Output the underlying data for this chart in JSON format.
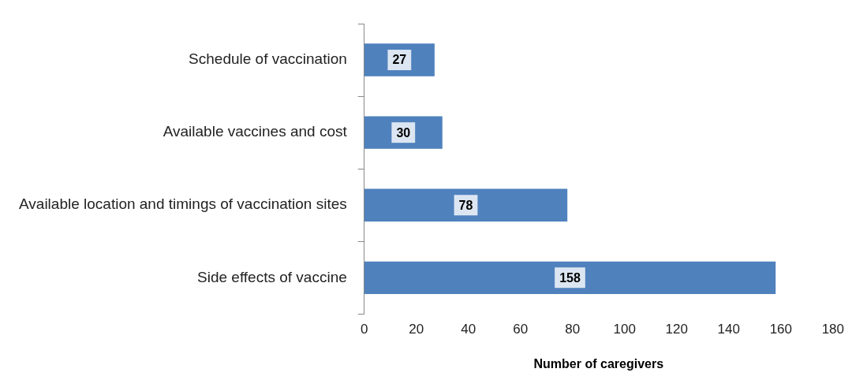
{
  "chart_data": {
    "type": "bar",
    "orientation": "horizontal",
    "xlabel": "Number of caregivers",
    "categories": [
      "Schedule of vaccination",
      "Available vaccines and cost",
      "Available location and timings of vaccination sites",
      "Side effects of vaccine"
    ],
    "values": [
      27,
      30,
      78,
      158
    ],
    "color": "#4f81bd",
    "xlim": [
      0,
      180
    ],
    "xticks": [
      0,
      20,
      40,
      60,
      80,
      100,
      120,
      140,
      160,
      180
    ],
    "grid": false,
    "data_labels": true
  }
}
